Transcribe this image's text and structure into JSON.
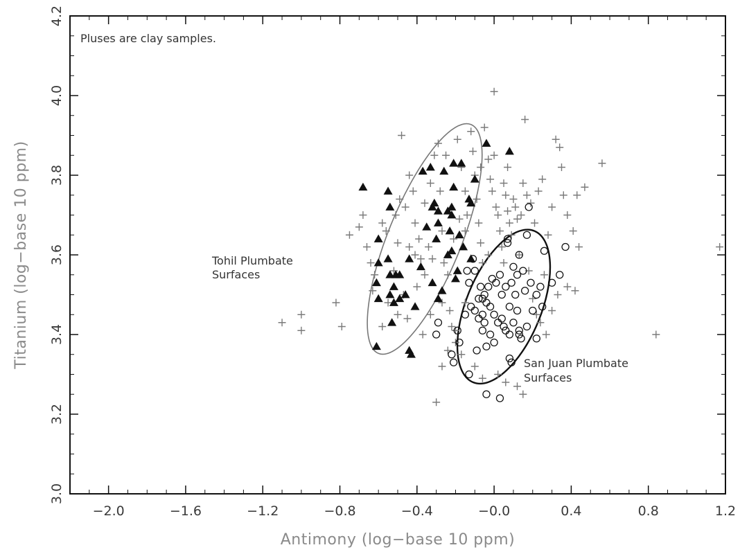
{
  "chart_data": {
    "type": "scatter",
    "title": "",
    "xlabel": "Antimony (log−base 10 ppm)",
    "ylabel": "Titanium (log−base 10 ppm)",
    "xlim": [
      -2.2,
      1.2
    ],
    "ylim": [
      3.0,
      4.2
    ],
    "x_ticks": [
      -2.0,
      -1.6,
      -1.2,
      -0.8,
      -0.4,
      0.0,
      0.4,
      0.8,
      1.2
    ],
    "x_tick_labels": [
      "−2.0",
      "−1.6",
      "−1.2",
      "−0.8",
      "−0.4",
      "−0.0",
      "0.4",
      "0.8",
      "1.2"
    ],
    "y_ticks": [
      3.0,
      3.2,
      3.4,
      3.6,
      3.8,
      4.0,
      4.2
    ],
    "y_tick_labels": [
      "3.0",
      "3.2",
      "3.4",
      "3.6",
      "3.8",
      "4.0",
      "4.2"
    ],
    "grid": false,
    "legend": "none",
    "annotations": [
      {
        "id": "note",
        "text": "Pluses are clay samples."
      },
      {
        "id": "tohil",
        "lines": [
          "Tohil Plumbate",
          "Surfaces"
        ]
      },
      {
        "id": "sanjuan",
        "lines": [
          "San Juan Plumbate",
          "Surfaces"
        ]
      }
    ],
    "ellipses": [
      {
        "name": "Tohil Plumbate Surfaces",
        "center": [
          -0.36,
          3.64
        ],
        "rx": 0.19,
        "ry": 0.31,
        "rotation_deg": 22,
        "color": "#777777"
      },
      {
        "name": "San Juan Plumbate Surfaces",
        "center": [
          0.05,
          3.47
        ],
        "rx": 0.195,
        "ry": 0.205,
        "rotation_deg": 22,
        "color": "#111111"
      }
    ],
    "series": [
      {
        "marker": "triangle",
        "color": "#111111",
        "points": [
          [
            -0.68,
            3.77
          ],
          [
            -0.54,
            3.72
          ],
          [
            -0.6,
            3.64
          ],
          [
            -0.6,
            3.58
          ],
          [
            -0.61,
            3.53
          ],
          [
            -0.55,
            3.59
          ],
          [
            -0.54,
            3.55
          ],
          [
            -0.51,
            3.55
          ],
          [
            -0.49,
            3.55
          ],
          [
            -0.52,
            3.52
          ],
          [
            -0.54,
            3.5
          ],
          [
            -0.6,
            3.49
          ],
          [
            -0.52,
            3.48
          ],
          [
            -0.49,
            3.49
          ],
          [
            -0.46,
            3.5
          ],
          [
            -0.41,
            3.47
          ],
          [
            -0.53,
            3.43
          ],
          [
            -0.61,
            3.37
          ],
          [
            -0.44,
            3.36
          ],
          [
            -0.43,
            3.35
          ],
          [
            -0.55,
            3.76
          ],
          [
            -0.37,
            3.81
          ],
          [
            -0.33,
            3.82
          ],
          [
            -0.31,
            3.73
          ],
          [
            -0.32,
            3.72
          ],
          [
            -0.29,
            3.71
          ],
          [
            -0.3,
            3.64
          ],
          [
            -0.24,
            3.71
          ],
          [
            -0.22,
            3.72
          ],
          [
            -0.22,
            3.7
          ],
          [
            -0.23,
            3.66
          ],
          [
            -0.22,
            3.61
          ],
          [
            -0.32,
            3.53
          ],
          [
            -0.29,
            3.49
          ],
          [
            -0.2,
            3.54
          ],
          [
            -0.12,
            3.59
          ],
          [
            -0.21,
            3.83
          ],
          [
            -0.17,
            3.83
          ],
          [
            -0.21,
            3.77
          ],
          [
            -0.13,
            3.74
          ],
          [
            -0.12,
            3.73
          ],
          [
            -0.1,
            3.79
          ],
          [
            -0.04,
            3.88
          ],
          [
            0.08,
            3.86
          ],
          [
            -0.18,
            3.65
          ],
          [
            -0.26,
            3.81
          ],
          [
            -0.29,
            3.68
          ],
          [
            -0.24,
            3.6
          ],
          [
            -0.35,
            3.67
          ],
          [
            -0.44,
            3.59
          ],
          [
            -0.38,
            3.57
          ],
          [
            -0.19,
            3.56
          ],
          [
            -0.27,
            3.51
          ],
          [
            -0.16,
            3.62
          ]
        ]
      },
      {
        "marker": "circle",
        "color": "#111111",
        "points": [
          [
            -0.3,
            3.4
          ],
          [
            -0.29,
            3.43
          ],
          [
            -0.21,
            3.33
          ],
          [
            -0.22,
            3.35
          ],
          [
            -0.19,
            3.41
          ],
          [
            -0.18,
            3.38
          ],
          [
            -0.13,
            3.3
          ],
          [
            -0.09,
            3.36
          ],
          [
            -0.04,
            3.37
          ],
          [
            -0.04,
            3.25
          ],
          [
            0.03,
            3.24
          ],
          [
            0.08,
            3.34
          ],
          [
            0.09,
            3.33
          ],
          [
            0.13,
            3.4
          ],
          [
            0.13,
            3.41
          ],
          [
            0.14,
            3.39
          ],
          [
            0.17,
            3.42
          ],
          [
            0.22,
            3.39
          ],
          [
            0.25,
            3.47
          ],
          [
            0.24,
            3.52
          ],
          [
            0.22,
            3.5
          ],
          [
            0.3,
            3.53
          ],
          [
            0.34,
            3.55
          ],
          [
            0.37,
            3.62
          ],
          [
            0.26,
            3.61
          ],
          [
            0.17,
            3.65
          ],
          [
            0.07,
            3.64
          ],
          [
            0.07,
            3.63
          ],
          [
            0.18,
            3.72
          ],
          [
            -0.14,
            3.56
          ],
          [
            -0.12,
            3.47
          ],
          [
            -0.1,
            3.46
          ],
          [
            -0.08,
            3.44
          ],
          [
            -0.06,
            3.45
          ],
          [
            -0.05,
            3.43
          ],
          [
            -0.06,
            3.49
          ],
          [
            -0.04,
            3.48
          ],
          [
            -0.02,
            3.47
          ],
          [
            0.0,
            3.45
          ],
          [
            0.02,
            3.43
          ],
          [
            0.04,
            3.44
          ],
          [
            0.05,
            3.42
          ],
          [
            0.06,
            3.41
          ],
          [
            0.08,
            3.4
          ],
          [
            -0.07,
            3.52
          ],
          [
            -0.05,
            3.5
          ],
          [
            -0.03,
            3.52
          ],
          [
            -0.01,
            3.54
          ],
          [
            0.01,
            3.53
          ],
          [
            0.03,
            3.55
          ],
          [
            0.06,
            3.52
          ],
          [
            0.09,
            3.53
          ],
          [
            0.12,
            3.55
          ],
          [
            0.15,
            3.56
          ],
          [
            0.11,
            3.5
          ],
          [
            0.16,
            3.51
          ],
          [
            0.19,
            3.53
          ],
          [
            0.13,
            3.6
          ],
          [
            0.1,
            3.57
          ],
          [
            -0.1,
            3.56
          ],
          [
            -0.11,
            3.59
          ],
          [
            -0.08,
            3.49
          ],
          [
            -0.13,
            3.53
          ],
          [
            0.0,
            3.38
          ],
          [
            -0.06,
            3.41
          ],
          [
            0.04,
            3.5
          ],
          [
            0.08,
            3.47
          ],
          [
            0.2,
            3.46
          ],
          [
            0.12,
            3.46
          ],
          [
            -0.02,
            3.4
          ],
          [
            0.1,
            3.43
          ],
          [
            -0.15,
            3.45
          ]
        ]
      },
      {
        "marker": "plus",
        "color": "#7a7a7a",
        "points": [
          [
            -1.1,
            3.43
          ],
          [
            -1.0,
            3.45
          ],
          [
            -1.0,
            3.41
          ],
          [
            -0.82,
            3.48
          ],
          [
            -0.79,
            3.42
          ],
          [
            -0.75,
            3.65
          ],
          [
            -0.7,
            3.67
          ],
          [
            -0.68,
            3.7
          ],
          [
            -0.66,
            3.62
          ],
          [
            -0.64,
            3.58
          ],
          [
            -0.62,
            3.55
          ],
          [
            -0.58,
            3.68
          ],
          [
            -0.56,
            3.66
          ],
          [
            -0.51,
            3.7
          ],
          [
            -0.49,
            3.74
          ],
          [
            -0.48,
            3.9
          ],
          [
            -0.46,
            3.72
          ],
          [
            -0.44,
            3.8
          ],
          [
            -0.42,
            3.76
          ],
          [
            -0.41,
            3.68
          ],
          [
            -0.39,
            3.64
          ],
          [
            -0.38,
            3.59
          ],
          [
            -0.36,
            3.55
          ],
          [
            -0.34,
            3.62
          ],
          [
            -0.33,
            3.78
          ],
          [
            -0.31,
            3.85
          ],
          [
            -0.29,
            3.88
          ],
          [
            -0.28,
            3.76
          ],
          [
            -0.27,
            3.66
          ],
          [
            -0.26,
            3.58
          ],
          [
            -0.24,
            3.55
          ],
          [
            -0.23,
            3.46
          ],
          [
            -0.22,
            3.42
          ],
          [
            -0.2,
            3.38
          ],
          [
            -0.19,
            3.89
          ],
          [
            -0.17,
            3.82
          ],
          [
            -0.15,
            3.76
          ],
          [
            -0.14,
            3.7
          ],
          [
            -0.12,
            3.91
          ],
          [
            -0.11,
            3.86
          ],
          [
            -0.1,
            3.8
          ],
          [
            -0.09,
            3.74
          ],
          [
            -0.08,
            3.68
          ],
          [
            -0.07,
            3.63
          ],
          [
            -0.06,
            3.58
          ],
          [
            -0.05,
            3.92
          ],
          [
            -0.03,
            3.84
          ],
          [
            -0.02,
            3.79
          ],
          [
            -0.01,
            3.76
          ],
          [
            0.0,
            4.01
          ],
          [
            0.01,
            3.72
          ],
          [
            0.02,
            3.7
          ],
          [
            0.03,
            3.66
          ],
          [
            0.04,
            3.62
          ],
          [
            0.05,
            3.78
          ],
          [
            0.06,
            3.75
          ],
          [
            0.07,
            3.71
          ],
          [
            0.08,
            3.68
          ],
          [
            0.09,
            3.65
          ],
          [
            0.1,
            3.74
          ],
          [
            0.11,
            3.72
          ],
          [
            0.12,
            3.69
          ],
          [
            0.14,
            3.7
          ],
          [
            0.15,
            3.78
          ],
          [
            0.16,
            3.94
          ],
          [
            0.17,
            3.75
          ],
          [
            0.19,
            3.73
          ],
          [
            0.21,
            3.68
          ],
          [
            0.23,
            3.76
          ],
          [
            0.25,
            3.79
          ],
          [
            0.28,
            3.65
          ],
          [
            0.3,
            3.72
          ],
          [
            0.32,
            3.89
          ],
          [
            0.34,
            3.87
          ],
          [
            0.35,
            3.82
          ],
          [
            0.36,
            3.75
          ],
          [
            0.38,
            3.7
          ],
          [
            0.41,
            3.66
          ],
          [
            0.43,
            3.75
          ],
          [
            0.44,
            3.62
          ],
          [
            0.47,
            3.77
          ],
          [
            0.56,
            3.83
          ],
          [
            0.84,
            3.4
          ],
          [
            1.17,
            3.62
          ],
          [
            0.38,
            3.52
          ],
          [
            0.42,
            3.51
          ],
          [
            0.33,
            3.5
          ],
          [
            0.22,
            3.45
          ],
          [
            0.24,
            3.43
          ],
          [
            0.27,
            3.4
          ],
          [
            0.3,
            3.46
          ],
          [
            0.15,
            3.25
          ],
          [
            0.12,
            3.27
          ],
          [
            -0.3,
            3.23
          ],
          [
            -0.27,
            3.32
          ],
          [
            -0.24,
            3.36
          ],
          [
            -0.2,
            3.41
          ],
          [
            -0.17,
            3.35
          ],
          [
            -0.1,
            3.32
          ],
          [
            -0.06,
            3.29
          ],
          [
            0.02,
            3.3
          ],
          [
            0.06,
            3.28
          ],
          [
            -0.27,
            3.48
          ],
          [
            -0.33,
            3.45
          ],
          [
            -0.4,
            3.52
          ],
          [
            -0.45,
            3.44
          ],
          [
            -0.47,
            3.5
          ],
          [
            -0.5,
            3.45
          ],
          [
            -0.55,
            3.48
          ],
          [
            -0.58,
            3.42
          ],
          [
            -0.63,
            3.51
          ],
          [
            -0.37,
            3.4
          ],
          [
            -0.15,
            3.48
          ],
          [
            -0.25,
            3.85
          ],
          [
            -0.36,
            3.73
          ],
          [
            -0.18,
            3.69
          ],
          [
            -0.32,
            3.59
          ],
          [
            -0.44,
            3.62
          ],
          [
            -0.5,
            3.63
          ],
          [
            -0.52,
            3.56
          ],
          [
            -0.41,
            3.6
          ],
          [
            -0.07,
            3.82
          ],
          [
            0.07,
            3.82
          ],
          [
            0.0,
            3.85
          ],
          [
            0.13,
            3.6
          ],
          [
            0.18,
            3.56
          ],
          [
            0.2,
            3.49
          ],
          [
            0.26,
            3.55
          ],
          [
            0.05,
            3.58
          ],
          [
            -0.03,
            3.6
          ],
          [
            -0.15,
            3.66
          ],
          [
            -0.21,
            3.64
          ]
        ]
      }
    ]
  }
}
